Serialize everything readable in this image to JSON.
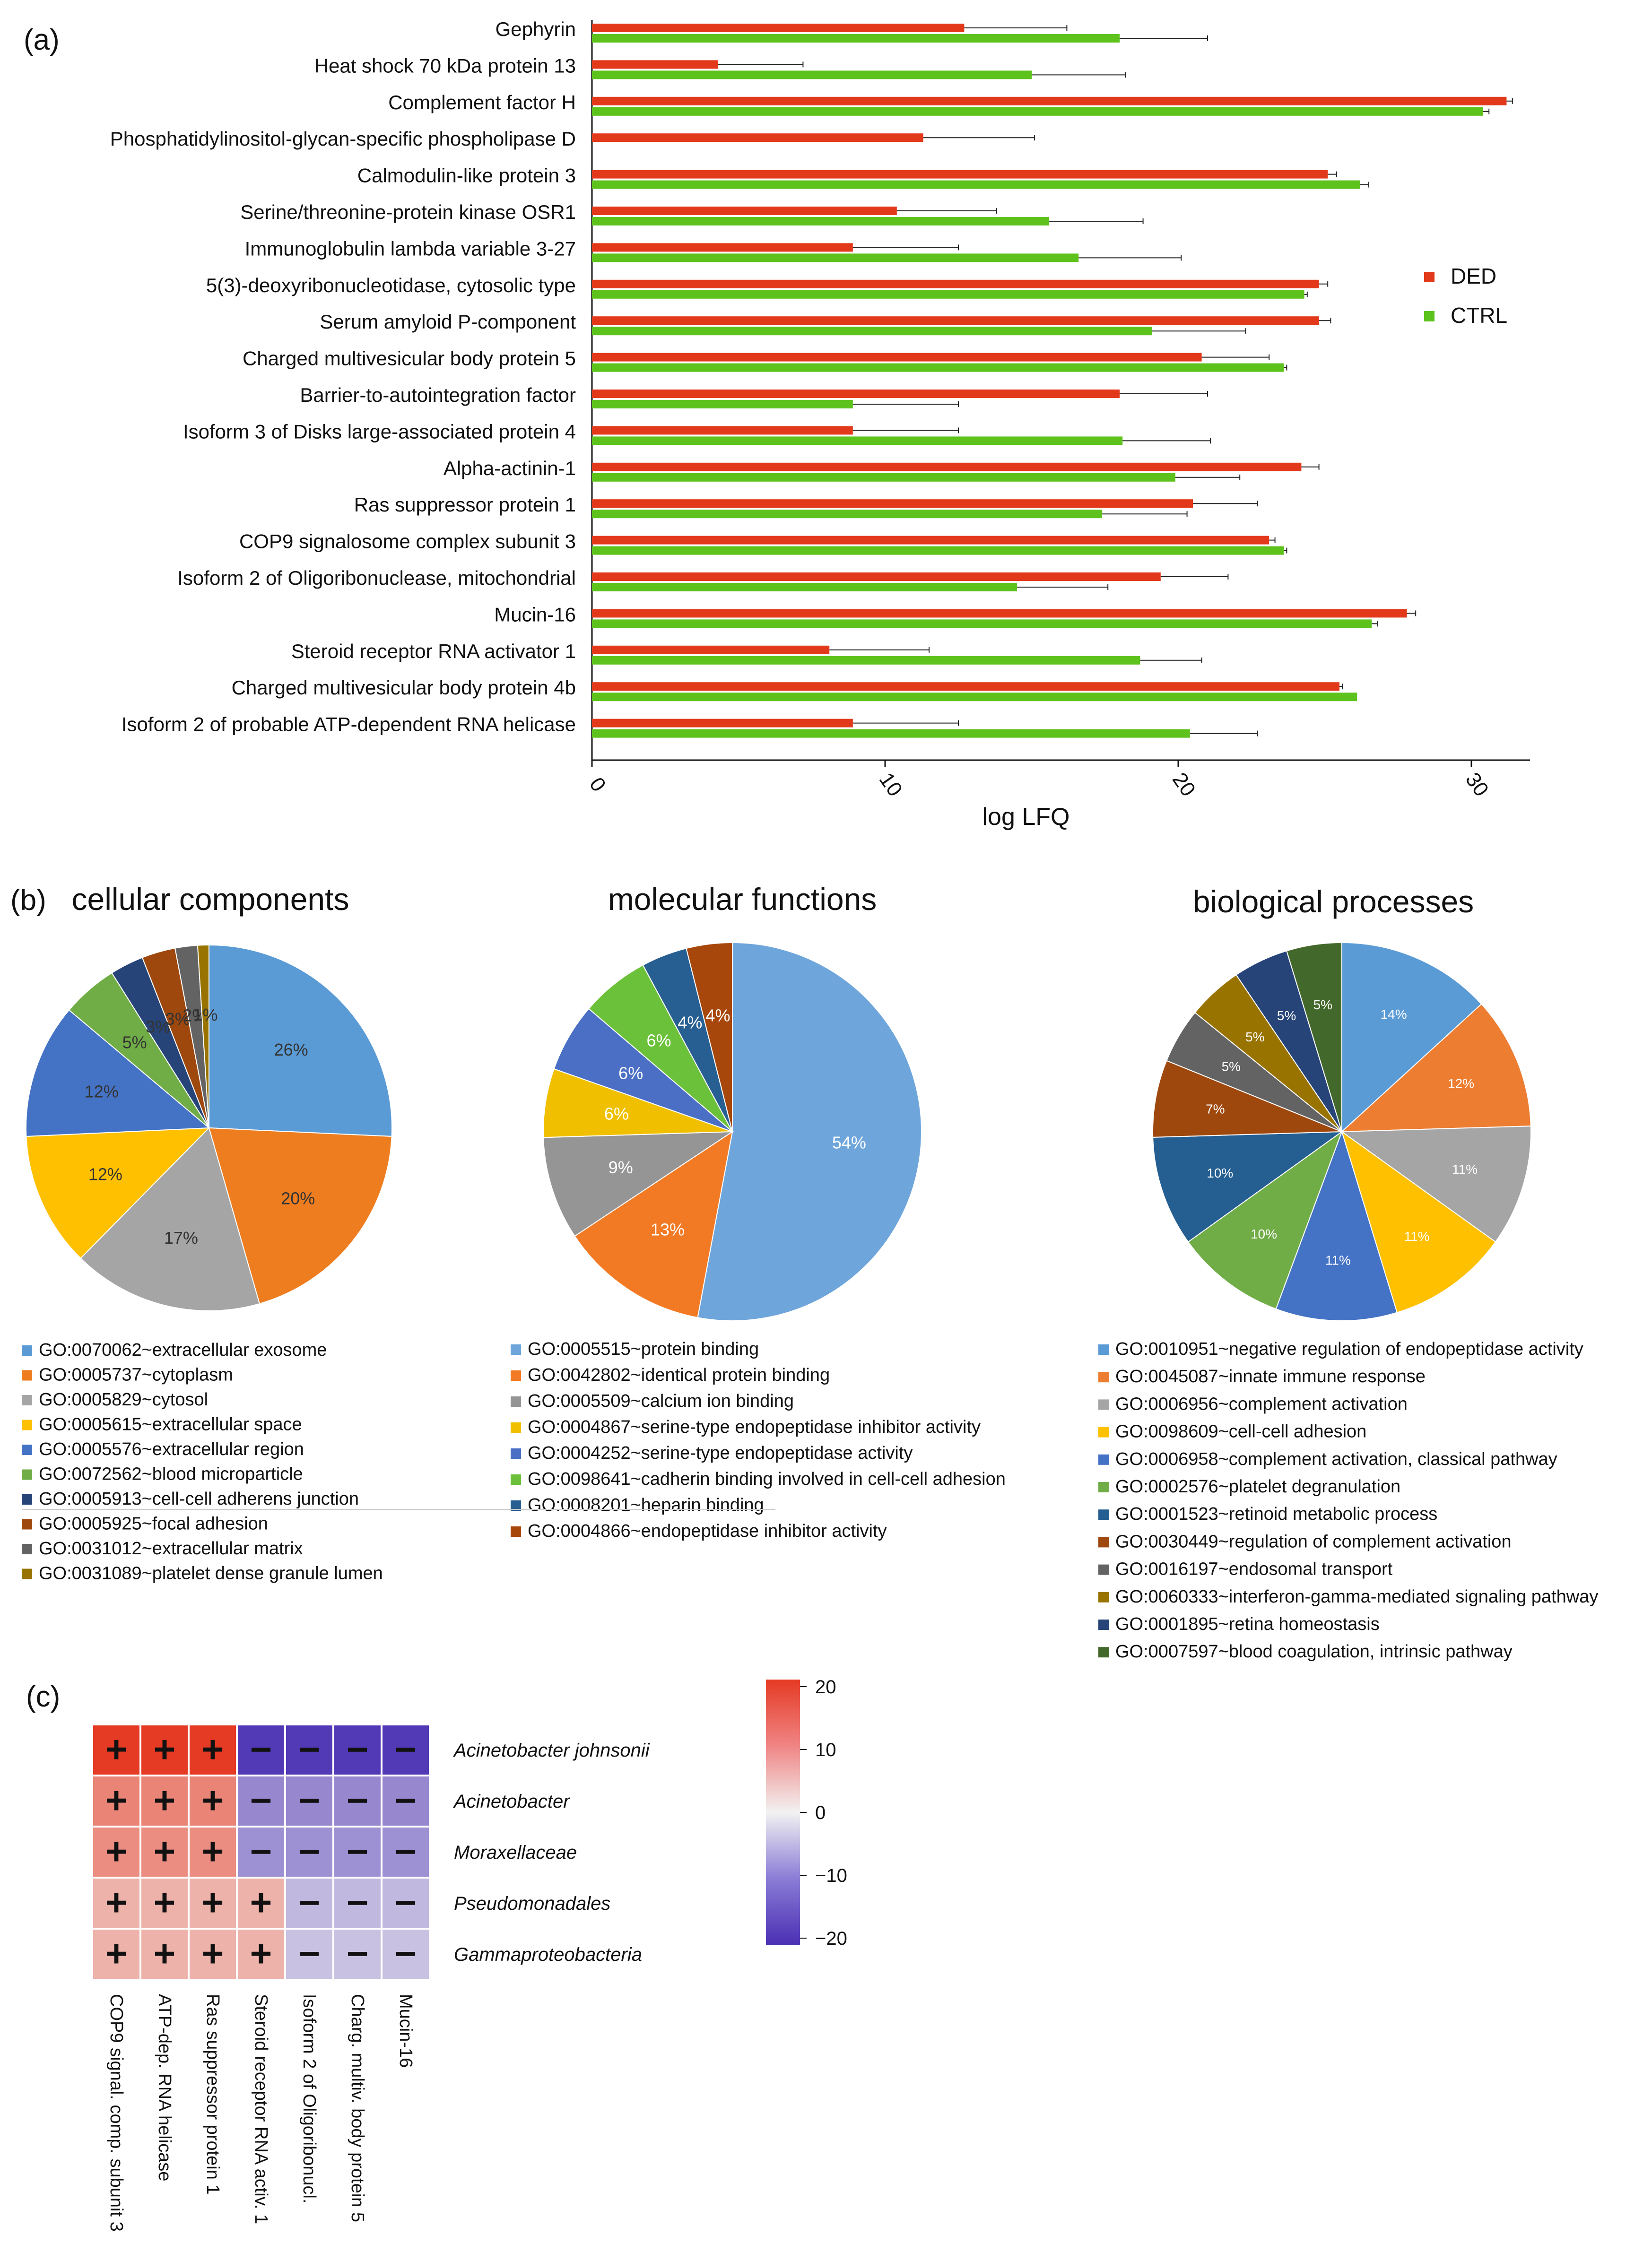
{
  "panel_labels": {
    "a": "(a)",
    "b": "(b)",
    "c": "(c)"
  },
  "colors": {
    "ded": "#e2391b",
    "ctrl": "#5ec21c"
  },
  "chart_data": [
    {
      "type": "bar",
      "orientation": "horizontal",
      "xlabel": "log LFQ",
      "xlim": [
        0,
        32
      ],
      "xticks": [
        0,
        10,
        20,
        30
      ],
      "legend": {
        "position": "right",
        "entries": [
          "DED",
          "CTRL"
        ]
      },
      "categories": [
        "Gephyrin",
        "Heat shock 70 kDa protein 13",
        "Complement factor H",
        "Phosphatidylinositol-glycan-specific phospholipase D",
        "Calmodulin-like protein 3",
        "Serine/threonine-protein kinase OSR1",
        "Immunoglobulin lambda variable 3-27",
        "5(3)-deoxyribonucleotidase, cytosolic type",
        "Serum amyloid P-component",
        "Charged multivesicular body protein 5",
        "Barrier-to-autointegration factor",
        "Isoform 3 of Disks large-associated protein 4",
        "Alpha-actinin-1",
        "Ras suppressor protein 1",
        "COP9 signalosome complex subunit 3",
        "Isoform 2 of Oligoribonuclease, mitochondrial",
        "Mucin-16",
        "Steroid receptor RNA activator 1",
        "Charged multivesicular body protein 4b",
        "Isoform 2 of probable ATP-dependent RNA helicase"
      ],
      "series": [
        {
          "name": "DED",
          "values": [
            12.7,
            4.3,
            31.2,
            11.3,
            25.1,
            10.4,
            8.9,
            24.8,
            24.8,
            20.8,
            18.0,
            8.9,
            24.2,
            20.5,
            23.1,
            19.4,
            27.8,
            8.1,
            25.5,
            8.9
          ],
          "errors": [
            3.5,
            2.9,
            0.2,
            3.8,
            0.3,
            3.4,
            3.6,
            0.3,
            0.4,
            2.3,
            3.0,
            3.6,
            0.6,
            2.2,
            0.2,
            2.3,
            0.3,
            3.4,
            0.1,
            3.6
          ]
        },
        {
          "name": "CTRL",
          "values": [
            18.0,
            15.0,
            30.4,
            null,
            26.2,
            15.6,
            16.6,
            24.3,
            19.1,
            23.6,
            8.9,
            18.1,
            19.9,
            17.4,
            23.6,
            14.5,
            26.6,
            18.7,
            26.1,
            20.4
          ],
          "errors": [
            3.0,
            3.2,
            0.2,
            null,
            0.3,
            3.2,
            3.5,
            0.1,
            3.2,
            0.1,
            3.6,
            3.0,
            2.2,
            2.9,
            0.1,
            3.1,
            0.2,
            2.1,
            0.0,
            2.3
          ]
        }
      ]
    },
    {
      "type": "pie",
      "title": "cellular components",
      "labels": [
        "GO:0070062~extracellular exosome",
        "GO:0005737~cytoplasm",
        "GO:0005829~cytosol",
        "GO:0005615~extracellular space",
        "GO:0005576~extracellular region",
        "GO:0072562~blood microparticle",
        "GO:0005913~cell-cell adherens junction",
        "GO:0005925~focal adhesion",
        "GO:0031012~extracellular matrix",
        "GO:0031089~platelet dense granule lumen"
      ],
      "values": [
        26,
        20,
        17,
        12,
        12,
        5,
        3,
        3,
        2,
        1
      ],
      "data_labels": [
        "26%",
        "20%",
        "17%",
        "12%",
        "12%",
        "5%",
        "3%",
        "3%",
        "2%",
        "1%"
      ],
      "colors": [
        "#5a9bd5",
        "#ed7d1f",
        "#a5a5a5",
        "#ffc000",
        "#4472c4",
        "#70ad47",
        "#264478",
        "#9e480e",
        "#636363",
        "#997300"
      ]
    },
    {
      "type": "pie",
      "title": "molecular functions",
      "labels": [
        "GO:0005515~protein binding",
        "GO:0042802~identical protein binding",
        "GO:0005509~calcium ion binding",
        "GO:0004867~serine-type endopeptidase inhibitor activity",
        "GO:0004252~serine-type endopeptidase activity",
        "GO:0098641~cadherin binding involved in cell-cell adhesion",
        "GO:0008201~heparin binding",
        "GO:0004866~endopeptidase inhibitor activity"
      ],
      "values": [
        54,
        13,
        9,
        6,
        6,
        6,
        4,
        4
      ],
      "data_labels": [
        "54%",
        "13%",
        "9%",
        "6%",
        "6%",
        "6%",
        "4%",
        "4%"
      ],
      "colors": [
        "#6ea5db",
        "#f27a24",
        "#959595",
        "#f0c000",
        "#4a6fc4",
        "#6cc13a",
        "#285f92",
        "#a8470c"
      ]
    },
    {
      "type": "pie",
      "title": "biological processes",
      "labels": [
        "GO:0010951~negative regulation of endopeptidase activity",
        "GO:0045087~innate immune response",
        "GO:0006956~complement activation",
        "GO:0098609~cell-cell adhesion",
        "GO:0006958~complement activation, classical pathway",
        "GO:0002576~platelet degranulation",
        "GO:0001523~retinoid metabolic process",
        "GO:0030449~regulation of complement activation",
        "GO:0016197~endosomal transport",
        "GO:0060333~interferon-gamma-mediated signaling pathway",
        "GO:0001895~retina homeostasis",
        "GO:0007597~blood coagulation, intrinsic pathway"
      ],
      "values": [
        14,
        12,
        11,
        11,
        11,
        10,
        10,
        7,
        5,
        5,
        5,
        5
      ],
      "data_labels": [
        "14%",
        "12%",
        "11%",
        "11%",
        "11%",
        "10%",
        "10%",
        "7%",
        "5%",
        "5%",
        "5%",
        "5%"
      ],
      "colors": [
        "#5b9bd5",
        "#ed7d31",
        "#a5a5a5",
        "#ffc000",
        "#4472c4",
        "#70ad47",
        "#255e91",
        "#9e480e",
        "#636363",
        "#997300",
        "#264478",
        "#43682b"
      ]
    },
    {
      "type": "heatmap",
      "rows": [
        "Acinetobacter johnsonii",
        "Acinetobacter",
        "Moraxellaceae",
        "Pseudomonadales",
        "Gammaproteobacteria"
      ],
      "columns": [
        "COP9 signal. comp. subunit 3",
        "ATP-dep. RNA helicase",
        "Ras suppressor protein 1",
        "Steroid receptor RNA activ. 1",
        "Isoform 2 of Oligoribonucl.",
        "Charg. multiv. body protein 5",
        "Mucin-16"
      ],
      "values": [
        [
          20,
          20,
          20,
          -19,
          -19,
          -19,
          -19
        ],
        [
          12,
          12,
          12,
          -11,
          -11,
          -11,
          -11
        ],
        [
          11,
          11,
          11,
          -10,
          -10,
          -10,
          -10
        ],
        [
          7,
          7,
          7,
          7,
          -6,
          -6,
          -6
        ],
        [
          7,
          7,
          7,
          7,
          -5,
          -5,
          -5
        ]
      ],
      "signs": [
        [
          "+",
          "+",
          "+",
          "−",
          "−",
          "−",
          "−"
        ],
        [
          "+",
          "+",
          "+",
          "−",
          "−",
          "−",
          "−"
        ],
        [
          "+",
          "+",
          "+",
          "−",
          "−",
          "−",
          "−"
        ],
        [
          "+",
          "+",
          "+",
          "+",
          "−",
          "−",
          "−"
        ],
        [
          "+",
          "+",
          "+",
          "+",
          "−",
          "−",
          "−"
        ]
      ],
      "colorbar": {
        "range": [
          -20,
          20
        ],
        "ticks": [
          "20",
          "10",
          "0",
          "−10",
          "−20"
        ],
        "tick_values": [
          20,
          10,
          0,
          -10,
          -20
        ]
      }
    }
  ]
}
